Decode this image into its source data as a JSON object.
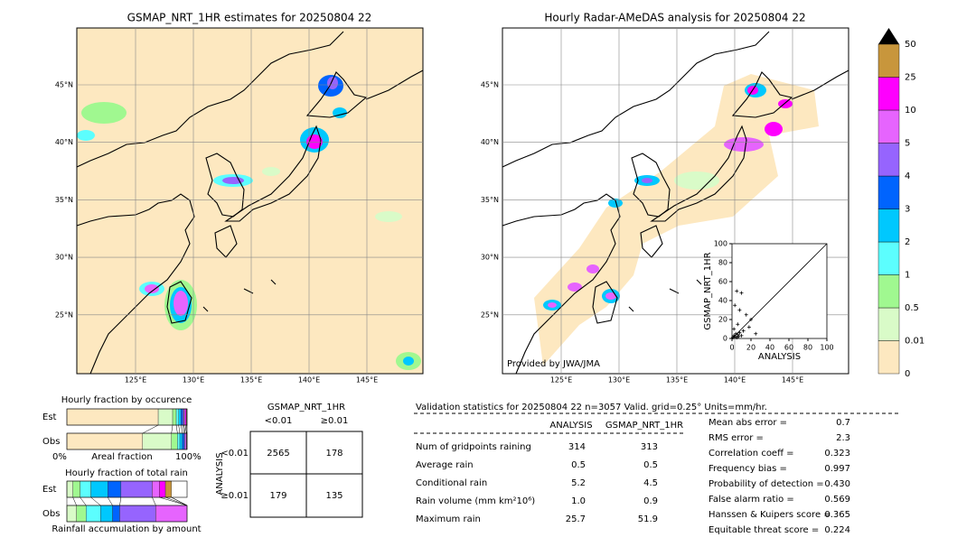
{
  "left_map": {
    "title": "GSMAP_NRT_1HR estimates for 20250804 22",
    "lat_labels": [
      "45°N",
      "40°N",
      "35°N",
      "30°N",
      "25°N"
    ],
    "lon_labels": [
      "125°E",
      "130°E",
      "135°E",
      "140°E",
      "145°E"
    ]
  },
  "right_map": {
    "title": "Hourly Radar-AMeDAS analysis for 20250804 22",
    "lat_labels": [
      "45°N",
      "40°N",
      "35°N",
      "30°N",
      "25°N"
    ],
    "lon_labels": [
      "125°E",
      "130°E",
      "135°E",
      "140°E",
      "145°E"
    ],
    "credit": "Provided by JWA/JMA"
  },
  "colorbar": {
    "labels": [
      "0",
      "0.01",
      "0.5",
      "1",
      "2",
      "3",
      "4",
      "5",
      "10",
      "25",
      "50"
    ],
    "colors": [
      "#fde8c0",
      "#d9fbc8",
      "#a0f890",
      "#5cfefe",
      "#00c8fe",
      "#0064fe",
      "#9664fe",
      "#e664fe",
      "#fe00fe",
      "#c8963c"
    ],
    "extend_color": "#000000"
  },
  "scatter": {
    "xlabel": "ANALYSIS",
    "ylabel": "GSMAP_NRT_1HR",
    "xlim": [
      0,
      100
    ],
    "ylim": [
      0,
      100
    ],
    "xticks": [
      0,
      20,
      40,
      60,
      80,
      100
    ],
    "yticks": [
      0,
      20,
      40,
      60,
      80,
      100
    ],
    "points": {
      "x": [
        1,
        2,
        3,
        4,
        5,
        6,
        7,
        8,
        10,
        12,
        5,
        10,
        20,
        15,
        3,
        8,
        2,
        6,
        18,
        25
      ],
      "y": [
        1,
        3,
        2,
        5,
        1,
        4,
        2,
        6,
        3,
        8,
        50,
        48,
        20,
        25,
        35,
        30,
        10,
        15,
        12,
        5
      ]
    }
  },
  "occurrence": {
    "title": "Hourly fraction by occurence",
    "rows": [
      {
        "name": "Est",
        "values": [
          0.76,
          0.12,
          0.03,
          0.02,
          0.02,
          0.015,
          0.01,
          0.01,
          0.01,
          0.005
        ]
      },
      {
        "name": "Obs",
        "values": [
          0.63,
          0.24,
          0.05,
          0.02,
          0.02,
          0.015,
          0.01,
          0.01,
          0.004,
          0.001
        ]
      }
    ],
    "axis_left": "0%",
    "axis_label": "Areal fraction",
    "axis_right": "100%"
  },
  "total_rain": {
    "title": "Hourly fraction of total rain",
    "rows": [
      {
        "name": "Est",
        "values": [
          0,
          0.05,
          0.06,
          0.09,
          0.14,
          0.11,
          0.26,
          0.06,
          0.05,
          0.05,
          0
        ]
      },
      {
        "name": "Obs",
        "values": [
          0,
          0.08,
          0.08,
          0.12,
          0.1,
          0.06,
          0.3,
          0.26,
          0,
          0,
          0
        ]
      }
    ],
    "footer": "Rainfall accumulation by amount"
  },
  "contingency": {
    "header": "GSMAP_NRT_1HR",
    "columns": [
      "<0.01",
      "≥0.01"
    ],
    "row_header": "ANALYSIS",
    "rows": [
      {
        "label": "<0.01",
        "cells": [
          "2565",
          "178"
        ]
      },
      {
        "label": "≥0.01",
        "cells": [
          "179",
          "135"
        ]
      }
    ]
  },
  "validation": {
    "title": "Validation statistics for 20250804 22  n=3057 Valid. grid=0.25° Units=mm/hr.",
    "columns": [
      "ANALYSIS",
      "GSMAP_NRT_1HR"
    ],
    "rows": [
      {
        "label": "Num of gridpoints raining",
        "values": [
          "314",
          "313"
        ]
      },
      {
        "label": "Average rain",
        "values": [
          "0.5",
          "0.5"
        ]
      },
      {
        "label": "Conditional rain",
        "values": [
          "5.2",
          "4.5"
        ]
      },
      {
        "label": "Rain volume (mm km²10⁶)",
        "values": [
          "1.0",
          "0.9"
        ]
      },
      {
        "label": "Maximum rain",
        "values": [
          "25.7",
          "51.9"
        ]
      }
    ],
    "scores": [
      {
        "label": "Mean abs error =",
        "value": "0.7"
      },
      {
        "label": "RMS error =",
        "value": "2.3"
      },
      {
        "label": "Correlation coeff =",
        "value": "0.323"
      },
      {
        "label": "Frequency bias =",
        "value": "0.997"
      },
      {
        "label": "Probability of detection =",
        "value": "0.430"
      },
      {
        "label": "False alarm ratio =",
        "value": "0.569"
      },
      {
        "label": "Hanssen & Kuipers score =",
        "value": "0.365"
      },
      {
        "label": "Equitable threat score =",
        "value": "0.224"
      }
    ]
  }
}
